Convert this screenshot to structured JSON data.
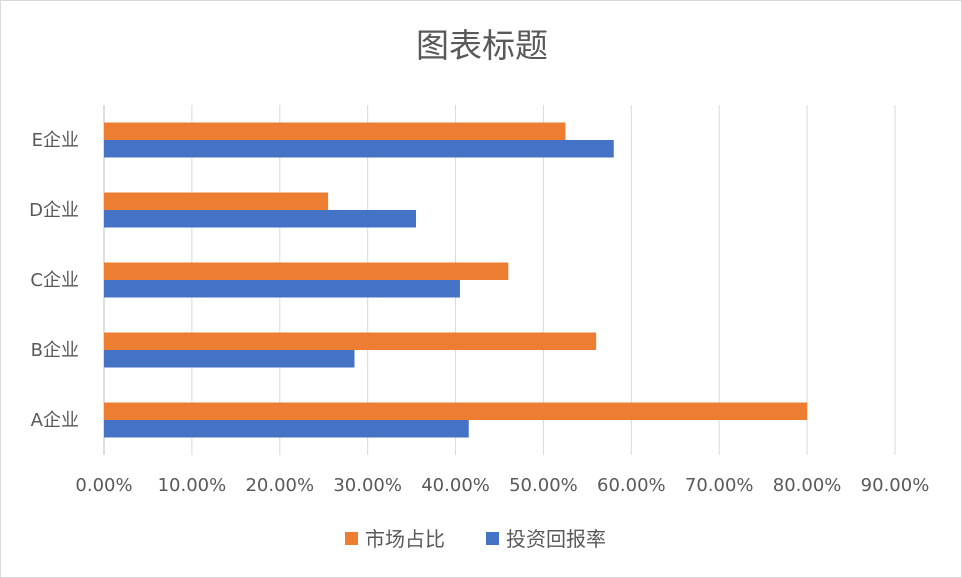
{
  "chart_data": {
    "type": "bar",
    "orientation": "horizontal",
    "title": "图表标题",
    "categories": [
      "A企业",
      "B企业",
      "C企业",
      "D企业",
      "E企业"
    ],
    "series": [
      {
        "name": "市场占比",
        "color": "#ED7D31",
        "values": [
          0.8,
          0.56,
          0.46,
          0.255,
          0.525
        ]
      },
      {
        "name": "投资回报率",
        "color": "#4472C4",
        "values": [
          0.415,
          0.285,
          0.405,
          0.355,
          0.58
        ]
      }
    ],
    "xlim": [
      0,
      0.9
    ],
    "x_ticks": [
      "0.00%",
      "10.00%",
      "20.00%",
      "30.00%",
      "40.00%",
      "50.00%",
      "60.00%",
      "70.00%",
      "80.00%",
      "90.00%"
    ],
    "grid": "vertical",
    "legend_position": "bottom"
  }
}
